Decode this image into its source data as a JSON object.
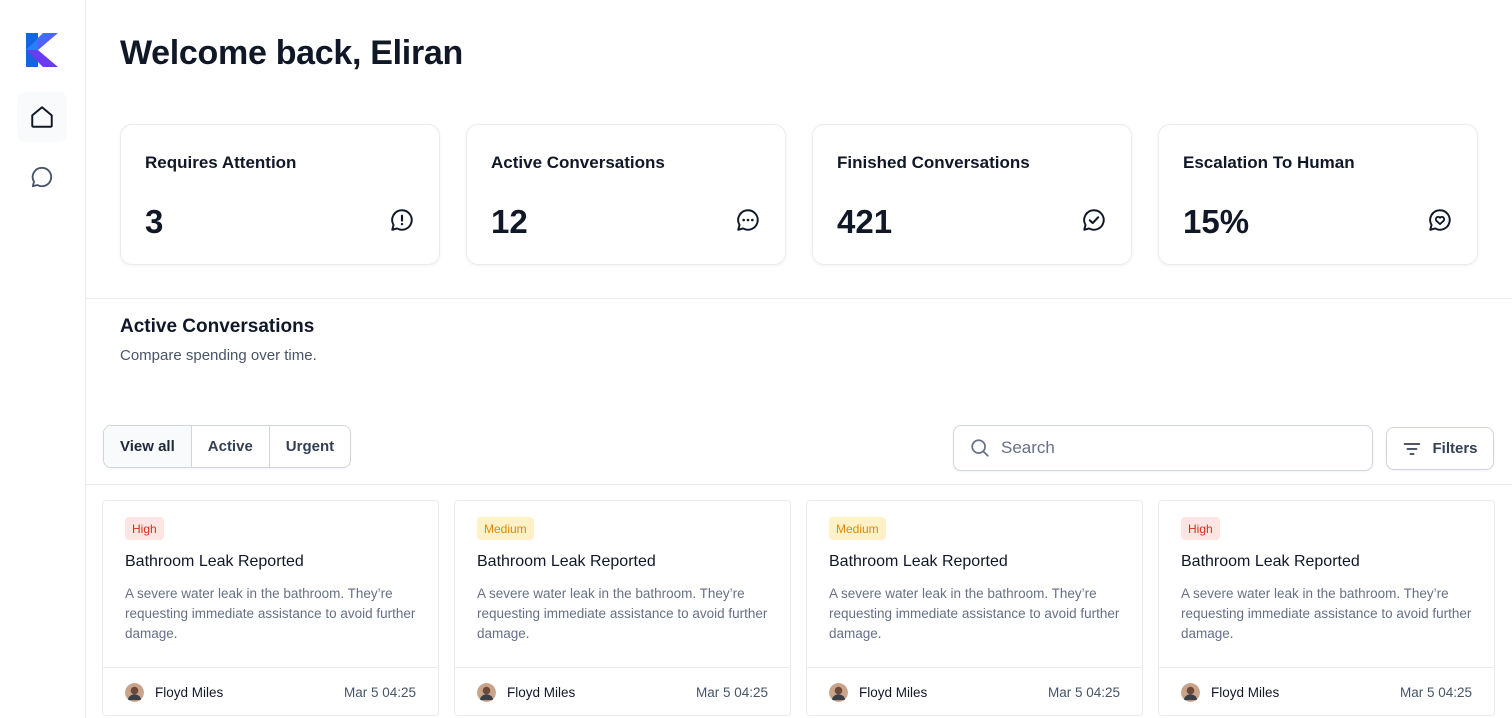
{
  "sidebar": {
    "logo": "k-logo",
    "items": [
      {
        "name": "home",
        "icon": "home-icon",
        "active": true
      },
      {
        "name": "conversations",
        "icon": "chat-bubble-icon",
        "active": false
      }
    ]
  },
  "header": {
    "title": "Welcome back, Eliran"
  },
  "stats": [
    {
      "label": "Requires Attention",
      "value": "3",
      "icon": "message-alert-icon"
    },
    {
      "label": "Active Conversations",
      "value": "12",
      "icon": "message-dots-icon"
    },
    {
      "label": "Finished Conversations",
      "value": "421",
      "icon": "message-check-icon"
    },
    {
      "label": "Escalation To Human",
      "value": "15%",
      "icon": "message-heart-icon"
    }
  ],
  "section": {
    "title": "Active Conversations",
    "subtitle": "Compare spending over time."
  },
  "filter_tabs": [
    {
      "label": "View all",
      "selected": true
    },
    {
      "label": "Active",
      "selected": false
    },
    {
      "label": "Urgent",
      "selected": false
    }
  ],
  "search": {
    "placeholder": "Search",
    "value": ""
  },
  "filters_button": {
    "label": "Filters"
  },
  "conversations": [
    {
      "priority": "High",
      "title": "Bathroom Leak Reported",
      "description": "A severe water leak in the bathroom. They’re requesting immediate assistance to avoid further damage.",
      "user": "Floyd Miles",
      "time": "Mar 5 04:25"
    },
    {
      "priority": "Medium",
      "title": "Bathroom Leak Reported",
      "description": "A severe water leak in the bathroom. They’re requesting immediate assistance to avoid further damage.",
      "user": "Floyd Miles",
      "time": "Mar 5 04:25"
    },
    {
      "priority": "Medium",
      "title": "Bathroom Leak Reported",
      "description": "A severe water leak in the bathroom. They’re requesting immediate assistance to avoid further damage.",
      "user": "Floyd Miles",
      "time": "Mar 5 04:25"
    },
    {
      "priority": "High",
      "title": "Bathroom Leak Reported",
      "description": "A severe water leak in the bathroom. They’re requesting immediate assistance to avoid further damage.",
      "user": "Floyd Miles",
      "time": "Mar 5 04:25"
    }
  ],
  "colors": {
    "high_bg": "#fee4e2",
    "high_text": "#d92d20",
    "medium_bg": "#fef0c7",
    "medium_text": "#dc8a06",
    "logo_gradient_start": "#1e88ff",
    "logo_gradient_end": "#7b3ff2"
  }
}
